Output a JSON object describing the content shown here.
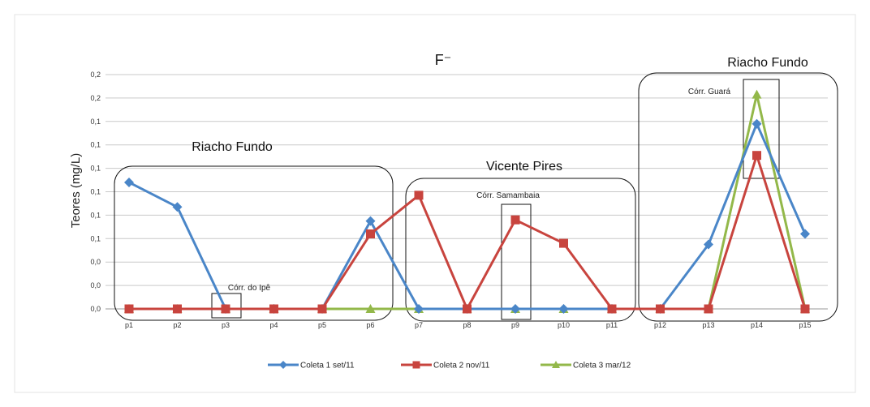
{
  "chart_data": {
    "type": "line",
    "title": "F⁻",
    "ylabel": "Teores (mg/L)",
    "xlabel": "",
    "categories": [
      "p1",
      "p2",
      "p3",
      "p4",
      "p5",
      "p6",
      "p7",
      "p8",
      "p9",
      "p10",
      "p11",
      "p12",
      "p13",
      "p14",
      "p15"
    ],
    "ylim": [
      0,
      0.2
    ],
    "yticks": [
      0,
      0.02,
      0.04,
      0.06,
      0.08,
      0.1,
      0.12,
      0.14,
      0.16,
      0.18,
      0.2
    ],
    "ytick_labels": [
      "0,0",
      "0,0",
      "0,0",
      "0,1",
      "0,1",
      "0,1",
      "0,1",
      "0,1",
      "0,1",
      "0,2",
      "0,2"
    ],
    "grid": true,
    "legend_position": "bottom",
    "series": [
      {
        "name": "Coleta 1 set/11",
        "color": "#4a86c8",
        "marker": "diamond",
        "values": [
          0.108,
          0.087,
          0,
          0,
          0,
          0.075,
          0,
          0,
          0,
          0,
          0,
          0,
          0.055,
          0.158,
          0.064
        ]
      },
      {
        "name": "Coleta 2 nov/11",
        "color": "#c8443e",
        "marker": "square",
        "values": [
          0,
          0,
          0,
          0,
          0,
          0.064,
          0.097,
          0,
          0.076,
          0.056,
          0,
          0,
          0,
          0.131,
          0
        ]
      },
      {
        "name": "Coleta 3 mar/12",
        "color": "#93b84a",
        "marker": "triangle",
        "values": [
          0,
          0,
          0,
          0,
          0,
          0,
          0,
          0,
          0,
          0,
          0,
          0,
          0,
          0.183,
          0
        ]
      }
    ],
    "annotations": {
      "regions": [
        {
          "label": "Riacho Fundo"
        },
        {
          "label": "Vicente Pires"
        },
        {
          "label": "Riacho Fundo"
        }
      ],
      "sublabels": [
        {
          "label": "Córr. do Ipê"
        },
        {
          "label": "Córr. Samambaia"
        },
        {
          "label": "Córr. Guará"
        }
      ]
    }
  }
}
